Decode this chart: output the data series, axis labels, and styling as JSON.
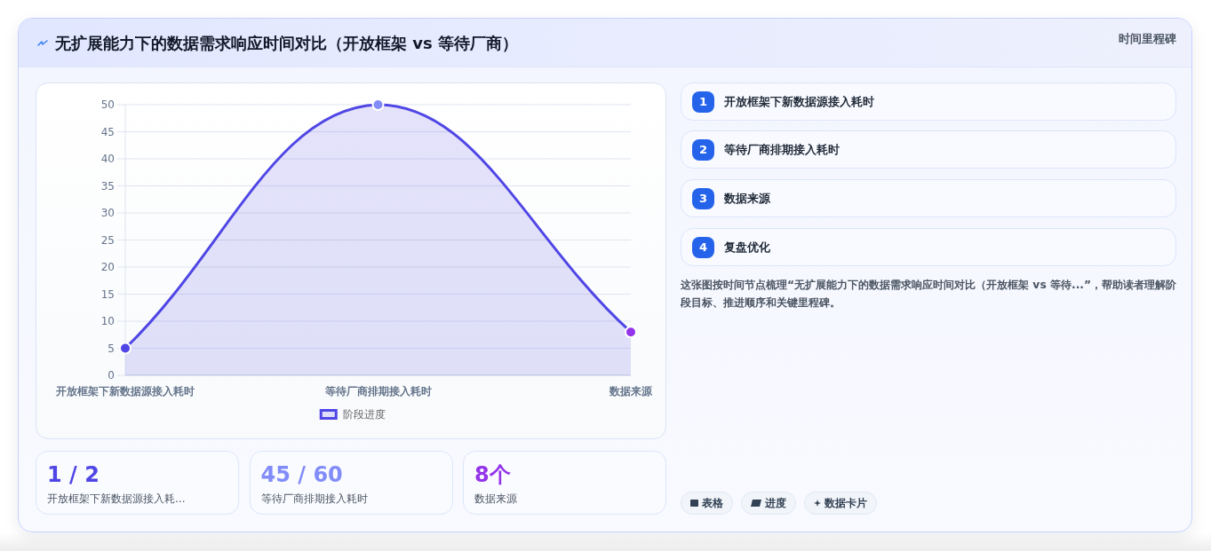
{
  "chart_data": [
    {
      "type": "area",
      "title": "无扩展能力下的数据需求响应时间对比（开放框架 vs 等待厂商）",
      "categories": [
        "开放框架下新数据源接入耗时",
        "等待厂商排期接入耗时",
        "数据来源"
      ],
      "series": [
        {
          "name": "阶段进度",
          "color": "#4f46e5",
          "colors": [
            "#4f46e5",
            "#818cf8",
            "#9333ea"
          ],
          "values": [
            5,
            50,
            8
          ]
        }
      ],
      "ylim": [
        0,
        50
      ],
      "yticks": [
        0,
        5,
        10,
        15,
        20,
        25,
        30,
        35,
        40,
        45,
        50
      ],
      "grid": "y",
      "legend": "bottom",
      "marker": "circle"
    },
    {
      "type": "other",
      "title": "时间里程碑",
      "categories": [
        "开放框架下新数据源接入耗时"
      ],
      "annotations": [
        "1"
      ],
      "color": "#2563eb"
    },
    {
      "type": "other",
      "categories": [
        "等待厂商排期接入耗时"
      ],
      "annotations": [
        "2"
      ],
      "color": "#2563eb"
    },
    {
      "type": "other",
      "categories": [
        "数据来源"
      ],
      "annotations": [
        "3"
      ],
      "color": "#2563eb"
    },
    {
      "type": "other",
      "categories": [
        "复盘优化"
      ],
      "annotations": [
        "4"
      ],
      "color": "#2563eb"
    },
    {
      "type": "other",
      "annotations": [
        "这张图按时间节点梳理“无扩展能力下的数据需求响应时间对比（开放框架 vs 等待...”，帮助读者理解阶段目标、推进顺序和关键里程碑。"
      ]
    },
    {
      "type": "other",
      "categories": [
        "开放框架下新数据源接入耗...",
        "等待厂商排期接入耗时",
        "数据来源"
      ],
      "annotations": [
        "1 / 2",
        "45 / 60",
        "8个"
      ]
    },
    {
      "type": "other",
      "annotations": [
        "表格",
        "进度",
        "数据卡片"
      ]
    }
  ]
}
